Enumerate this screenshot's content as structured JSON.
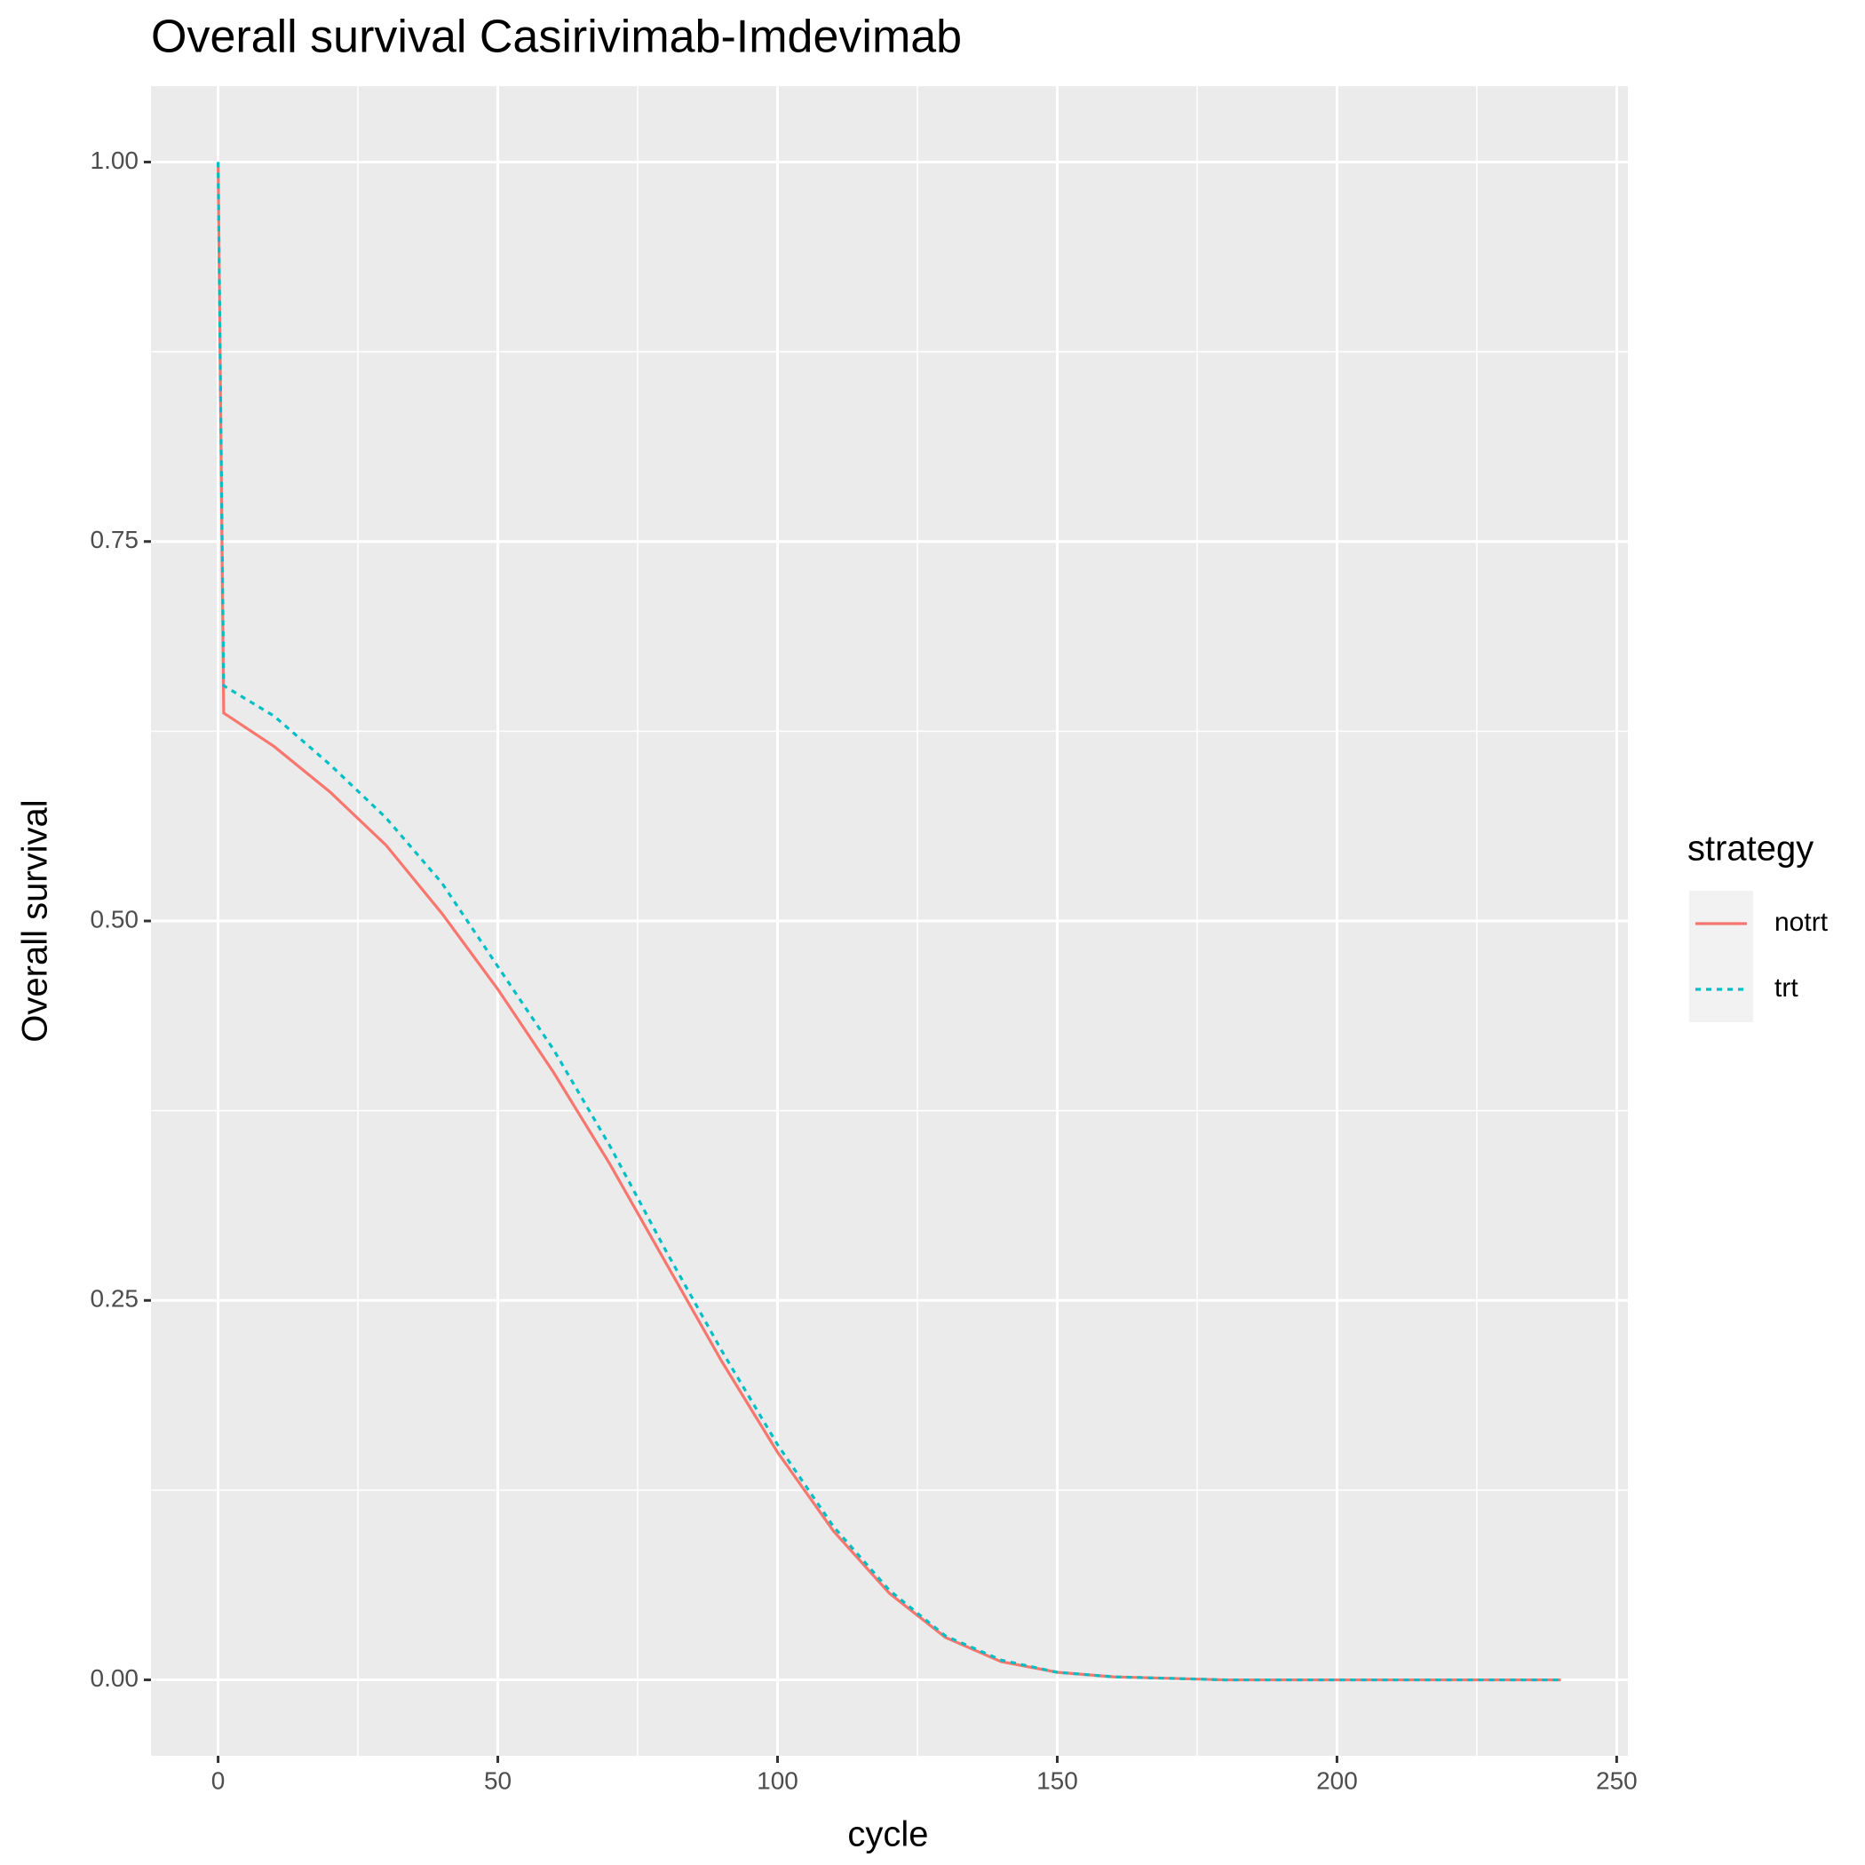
{
  "chart_data": {
    "type": "line",
    "title": "Overall survival Casirivimab-Imdevimab",
    "x_label": "cycle",
    "y_label": "Overall survival",
    "legend_title": "strategy",
    "x": [
      0,
      1,
      10,
      20,
      30,
      40,
      50,
      60,
      70,
      80,
      90,
      100,
      110,
      120,
      130,
      140,
      150,
      160,
      170,
      180,
      190,
      200,
      210,
      220,
      230,
      240
    ],
    "series": [
      {
        "name": "notrt",
        "color": "#F8766D",
        "dash": "solid",
        "values": [
          1,
          0.637,
          0.615,
          0.585,
          0.55,
          0.505,
          0.455,
          0.4,
          0.34,
          0.275,
          0.21,
          0.15,
          0.098,
          0.057,
          0.028,
          0.012,
          0.005,
          0.002,
          0.001,
          0,
          0,
          0,
          0,
          0,
          0,
          0
        ]
      },
      {
        "name": "trt",
        "color": "#00BFC4",
        "dash": "dotted",
        "values": [
          1,
          0.655,
          0.635,
          0.603,
          0.568,
          0.525,
          0.47,
          0.415,
          0.352,
          0.283,
          0.217,
          0.155,
          0.101,
          0.059,
          0.029,
          0.013,
          0.005,
          0.002,
          0.001,
          0,
          0,
          0,
          0,
          0,
          0,
          0
        ]
      }
    ],
    "xlim": [
      -12,
      252
    ],
    "ylim": [
      -0.05,
      1.05
    ],
    "xticks": [
      0,
      50,
      100,
      150,
      200,
      250
    ],
    "yticks": [
      {
        "value": 0,
        "label": "0.00"
      },
      {
        "value": 0.25,
        "label": "0.25"
      },
      {
        "value": 0.5,
        "label": "0.50"
      },
      {
        "value": 0.75,
        "label": "0.75"
      },
      {
        "value": 1,
        "label": "1.00"
      }
    ],
    "grid": true
  }
}
